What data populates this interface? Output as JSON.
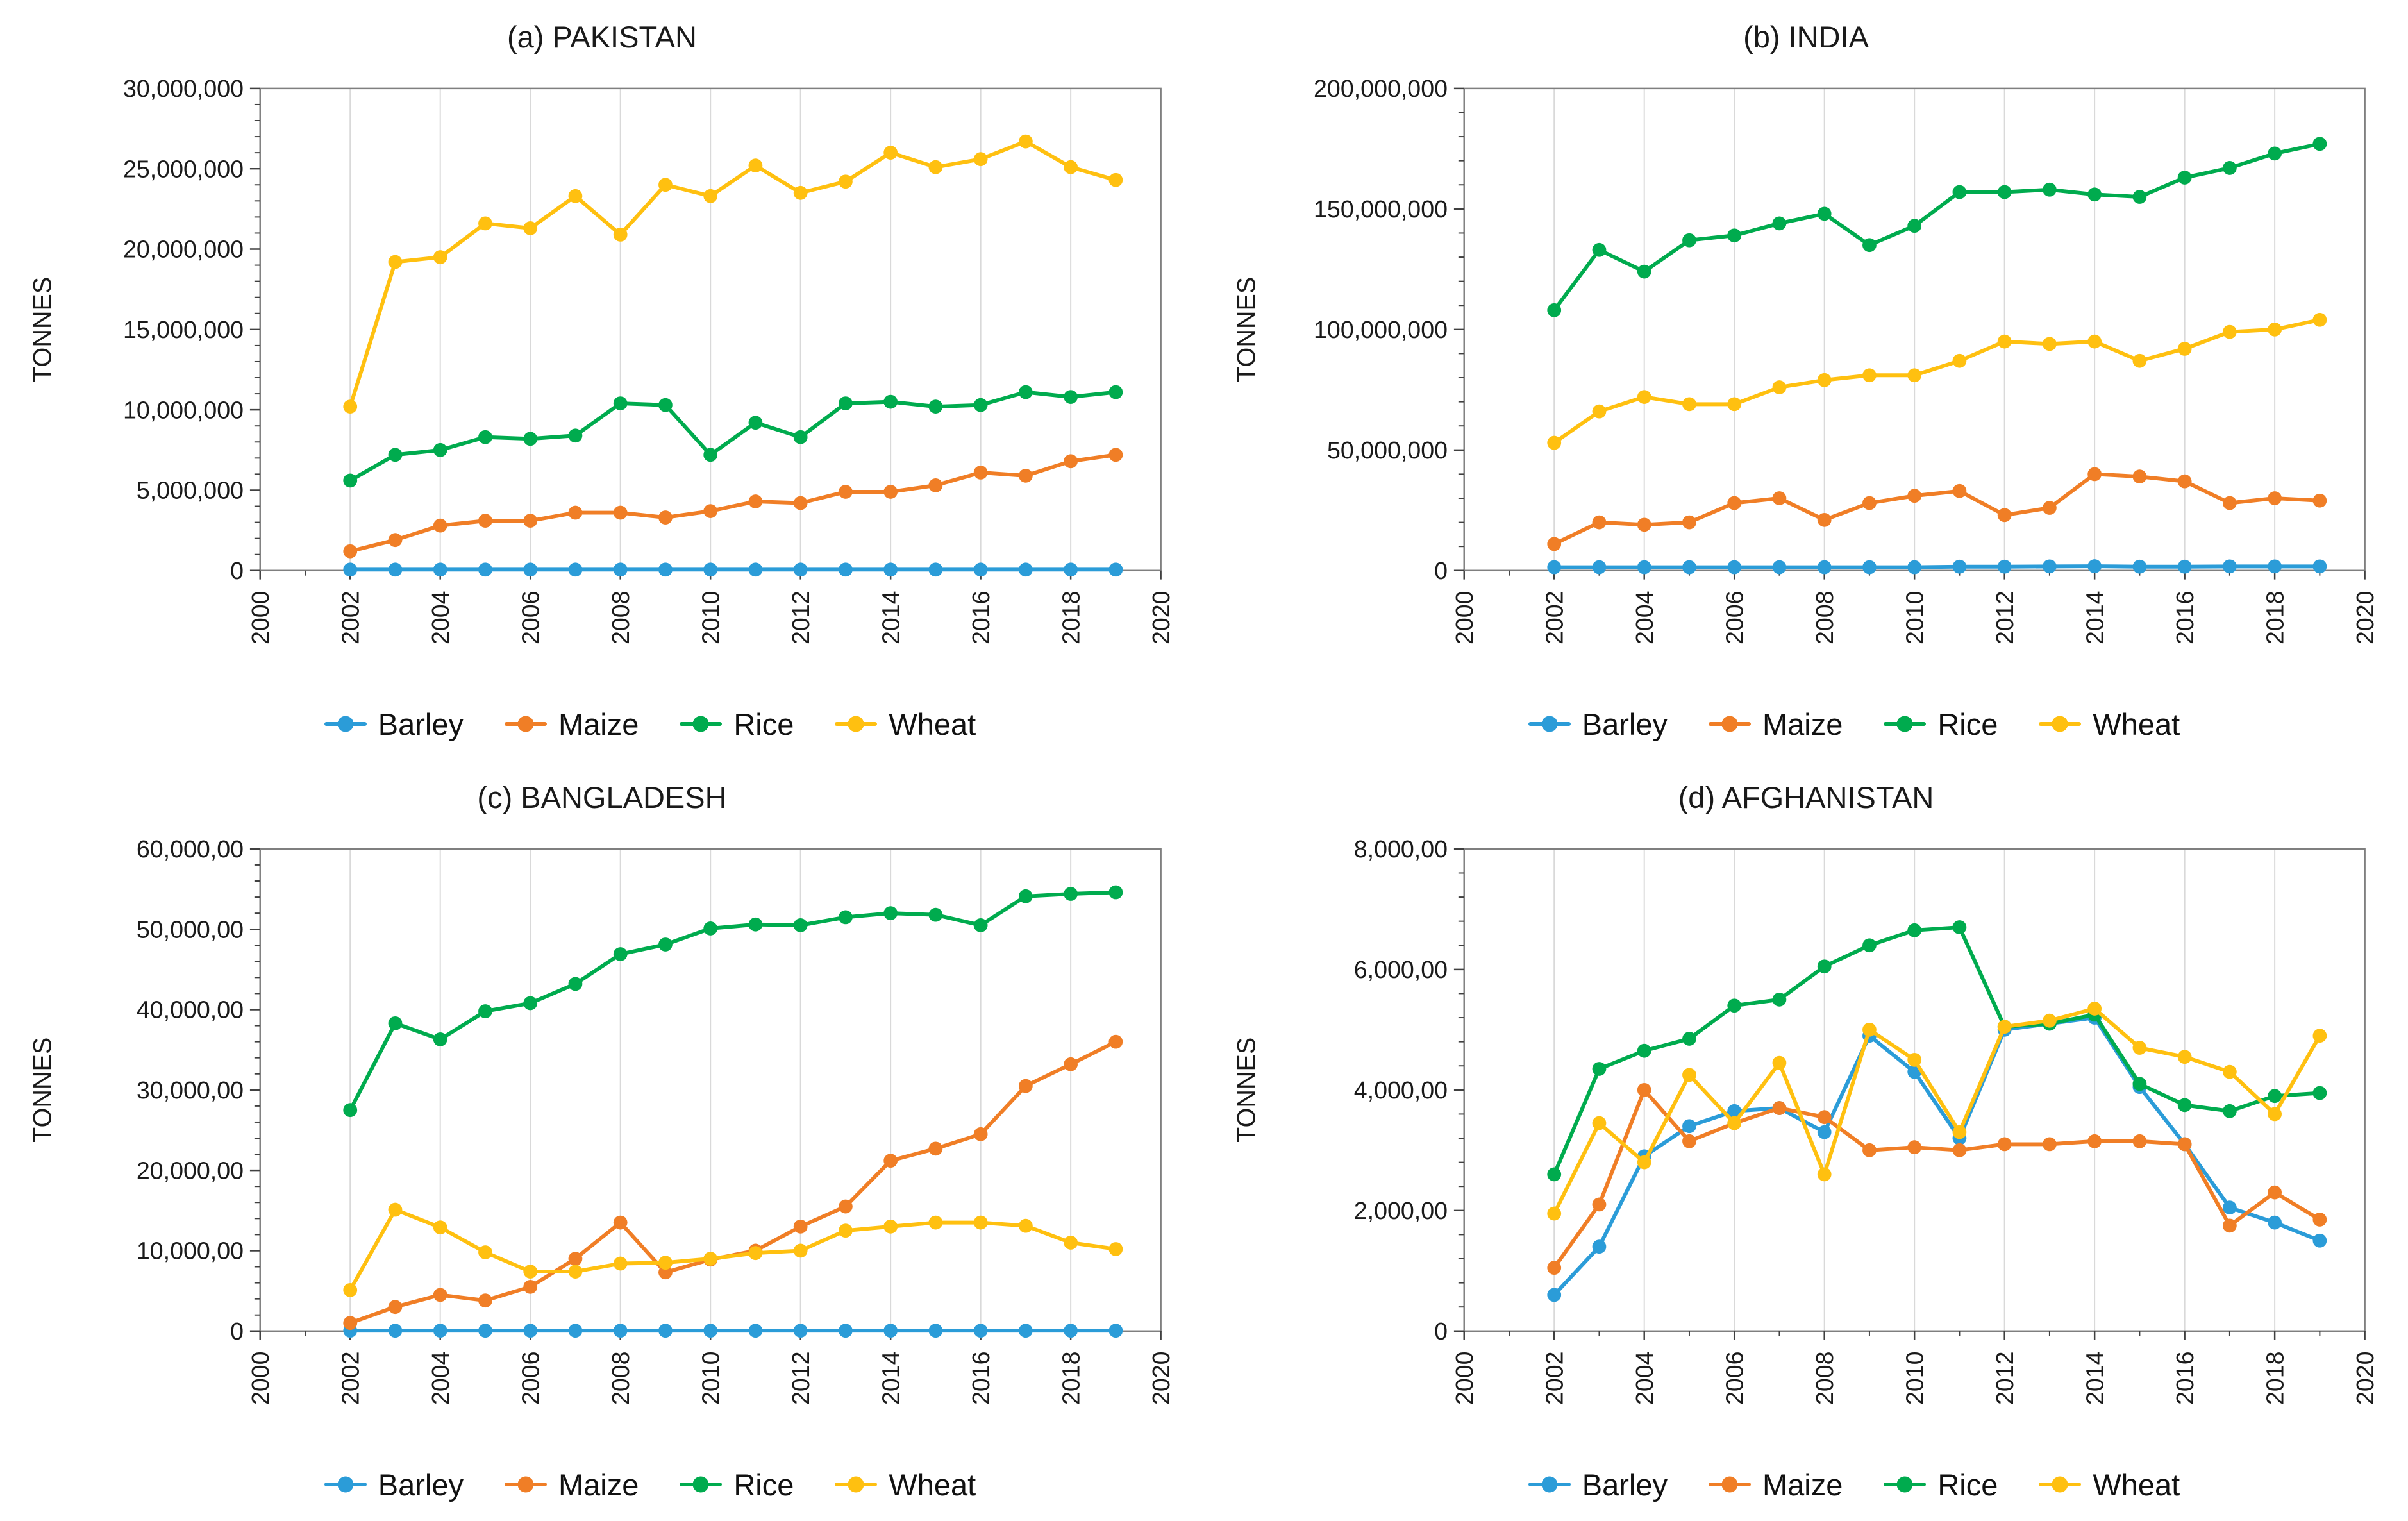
{
  "style": {
    "background": "#FFFFFF",
    "grid_color": "#D9D9D9",
    "border_color": "#7F7F7F",
    "axis_color": "#404040",
    "text_color": "#1A1A1A"
  },
  "chart_data": [
    {
      "id": "pakistan",
      "type": "line",
      "title": "(a) PAKISTAN",
      "ylabel": "TONNES",
      "xlim": [
        2000,
        2020
      ],
      "ylim": [
        0,
        30000000
      ],
      "grid": "vertical-only",
      "legend_position": "bottom",
      "x_tick_labels": [
        "2000",
        "2002",
        "2004",
        "2006",
        "2008",
        "2010",
        "2012",
        "2014",
        "2016",
        "2018",
        "2020"
      ],
      "y_ticks": [
        {
          "v": 0,
          "label": "0"
        },
        {
          "v": 5000000,
          "label": "5,000,000"
        },
        {
          "v": 10000000,
          "label": "10,000,000"
        },
        {
          "v": 15000000,
          "label": "15,000,000"
        },
        {
          "v": 20000000,
          "label": "20,000,000"
        },
        {
          "v": 25000000,
          "label": "25,000,000"
        },
        {
          "v": 30000000,
          "label": "30,000,000"
        }
      ],
      "x": [
        2002,
        2003,
        2004,
        2005,
        2006,
        2007,
        2008,
        2009,
        2010,
        2011,
        2012,
        2013,
        2014,
        2015,
        2016,
        2017,
        2018,
        2019
      ],
      "series": [
        {
          "name": "Barley",
          "color": "#2B9CD8",
          "values": [
            60000,
            60000,
            60000,
            60000,
            60000,
            60000,
            60000,
            60000,
            60000,
            60000,
            60000,
            60000,
            60000,
            60000,
            60000,
            60000,
            60000,
            60000
          ]
        },
        {
          "name": "Maize",
          "color": "#F07E26",
          "values": [
            1200000,
            1900000,
            2800000,
            3100000,
            3100000,
            3600000,
            3600000,
            3300000,
            3700000,
            4300000,
            4200000,
            4900000,
            4900000,
            5300000,
            6100000,
            5900000,
            6800000,
            7200000
          ]
        },
        {
          "name": "Rice",
          "color": "#00AB4E",
          "values": [
            5600000,
            7200000,
            7500000,
            8300000,
            8200000,
            8400000,
            10400000,
            10300000,
            7200000,
            9200000,
            8300000,
            10400000,
            10500000,
            10200000,
            10300000,
            11100000,
            10800000,
            11100000
          ]
        },
        {
          "name": "Wheat",
          "color": "#FFC010",
          "values": [
            10200000,
            19200000,
            19500000,
            21600000,
            21300000,
            23300000,
            20900000,
            24000000,
            23300000,
            25200000,
            23500000,
            24200000,
            26000000,
            25100000,
            25600000,
            26700000,
            25100000,
            24300000
          ]
        }
      ]
    },
    {
      "id": "india",
      "type": "line",
      "title": "(b) INDIA",
      "ylabel": "TONNES",
      "xlim": [
        2000,
        2020
      ],
      "ylim": [
        0,
        200000000
      ],
      "grid": "vertical-only",
      "legend_position": "bottom",
      "x_tick_labels": [
        "2000",
        "2002",
        "2004",
        "2006",
        "2008",
        "2010",
        "2012",
        "2014",
        "2016",
        "2018",
        "2020"
      ],
      "y_ticks": [
        {
          "v": 0,
          "label": "0"
        },
        {
          "v": 50000000,
          "label": "50,000,000"
        },
        {
          "v": 100000000,
          "label": "100,000,000"
        },
        {
          "v": 150000000,
          "label": "150,000,000"
        },
        {
          "v": 200000000,
          "label": "200,000,000"
        }
      ],
      "x": [
        2002,
        2003,
        2004,
        2005,
        2006,
        2007,
        2008,
        2009,
        2010,
        2011,
        2012,
        2013,
        2014,
        2015,
        2016,
        2017,
        2018,
        2019
      ],
      "series": [
        {
          "name": "Barley",
          "color": "#2B9CD8",
          "values": [
            1400000,
            1400000,
            1400000,
            1400000,
            1400000,
            1400000,
            1400000,
            1400000,
            1400000,
            1600000,
            1600000,
            1700000,
            1800000,
            1600000,
            1600000,
            1700000,
            1700000,
            1700000
          ]
        },
        {
          "name": "Maize",
          "color": "#F07E26",
          "values": [
            11000000,
            20000000,
            19000000,
            20000000,
            28000000,
            30000000,
            21000000,
            28000000,
            31000000,
            33000000,
            23000000,
            26000000,
            40000000,
            39000000,
            37000000,
            28000000,
            30000000,
            29000000
          ]
        },
        {
          "name": "Rice",
          "color": "#00AB4E",
          "values": [
            108000000,
            133000000,
            124000000,
            137000000,
            139000000,
            144000000,
            148000000,
            135000000,
            143000000,
            157000000,
            157000000,
            158000000,
            156000000,
            155000000,
            163000000,
            167000000,
            173000000,
            177000000
          ]
        },
        {
          "name": "Wheat",
          "color": "#FFC010",
          "values": [
            53000000,
            66000000,
            72000000,
            69000000,
            69000000,
            76000000,
            79000000,
            81000000,
            81000000,
            87000000,
            95000000,
            94000000,
            95000000,
            87000000,
            92000000,
            99000000,
            100000000,
            104000000
          ]
        }
      ]
    },
    {
      "id": "bangladesh",
      "type": "line",
      "title": "(c) BANGLADESH",
      "ylabel": "TONNES",
      "xlim": [
        2000,
        2020
      ],
      "ylim": [
        0,
        6000000
      ],
      "grid": "vertical-only",
      "legend_position": "bottom",
      "x_tick_labels": [
        "2000",
        "2002",
        "2004",
        "2006",
        "2008",
        "2010",
        "2012",
        "2014",
        "2016",
        "2018",
        "2020"
      ],
      "y_ticks": [
        {
          "v": 0,
          "label": "0"
        },
        {
          "v": 1000000,
          "label": "10,000,00"
        },
        {
          "v": 2000000,
          "label": "20,000,00"
        },
        {
          "v": 3000000,
          "label": "30,000,00"
        },
        {
          "v": 4000000,
          "label": "40,000,00"
        },
        {
          "v": 5000000,
          "label": "50,000,00"
        },
        {
          "v": 6000000,
          "label": "60,000,00"
        }
      ],
      "x": [
        2002,
        2003,
        2004,
        2005,
        2006,
        2007,
        2008,
        2009,
        2010,
        2011,
        2012,
        2013,
        2014,
        2015,
        2016,
        2017,
        2018,
        2019
      ],
      "series": [
        {
          "name": "Barley",
          "color": "#2B9CD8",
          "values": [
            5000,
            5000,
            5000,
            5000,
            5000,
            5000,
            5000,
            5000,
            5000,
            5000,
            5000,
            5000,
            5000,
            5000,
            5000,
            5000,
            5000,
            5000
          ]
        },
        {
          "name": "Maize",
          "color": "#F07E26",
          "values": [
            100000,
            300000,
            450000,
            380000,
            550000,
            900000,
            1350000,
            730000,
            890000,
            1000000,
            1300000,
            1550000,
            2120000,
            2270000,
            2450000,
            3050000,
            3320000,
            3600000
          ]
        },
        {
          "name": "Rice",
          "color": "#00AB4E",
          "values": [
            2750000,
            3830000,
            3630000,
            3980000,
            4080000,
            4320000,
            4690000,
            4810000,
            5010000,
            5060000,
            5050000,
            5150000,
            5200000,
            5180000,
            5050000,
            5410000,
            5440000,
            5460000
          ]
        },
        {
          "name": "Wheat",
          "color": "#FFC010",
          "values": [
            510000,
            1510000,
            1290000,
            980000,
            740000,
            740000,
            840000,
            850000,
            900000,
            970000,
            1000000,
            1250000,
            1300000,
            1350000,
            1350000,
            1310000,
            1100000,
            1020000
          ]
        }
      ]
    },
    {
      "id": "afghanistan",
      "type": "line",
      "title": "(d) AFGHANISTAN",
      "ylabel": "TONNES",
      "xlim": [
        2000,
        2020
      ],
      "ylim": [
        0,
        800000
      ],
      "grid": "vertical-only",
      "legend_position": "bottom",
      "x_tick_labels": [
        "2000",
        "2002",
        "2004",
        "2006",
        "2008",
        "2010",
        "2012",
        "2014",
        "2016",
        "2018",
        "2020"
      ],
      "y_ticks": [
        {
          "v": 0,
          "label": "0"
        },
        {
          "v": 200000,
          "label": "2,000,00"
        },
        {
          "v": 400000,
          "label": "4,000,00"
        },
        {
          "v": 600000,
          "label": "6,000,00"
        },
        {
          "v": 800000,
          "label": "8,000,00"
        }
      ],
      "x": [
        2002,
        2003,
        2004,
        2005,
        2006,
        2007,
        2008,
        2009,
        2010,
        2011,
        2012,
        2013,
        2014,
        2015,
        2016,
        2017,
        2018,
        2019
      ],
      "series": [
        {
          "name": "Barley",
          "color": "#2B9CD8",
          "values": [
            60000,
            140000,
            290000,
            340000,
            365000,
            370000,
            330000,
            490000,
            430000,
            320000,
            500000,
            510000,
            520000,
            405000,
            310000,
            205000,
            180000,
            150000
          ]
        },
        {
          "name": "Maize",
          "color": "#F07E26",
          "values": [
            105000,
            210000,
            400000,
            315000,
            345000,
            370000,
            355000,
            300000,
            305000,
            300000,
            310000,
            310000,
            315000,
            315000,
            310000,
            175000,
            230000,
            185000
          ]
        },
        {
          "name": "Rice",
          "color": "#00AB4E",
          "values": [
            260000,
            435000,
            465000,
            485000,
            540000,
            550000,
            605000,
            640000,
            665000,
            670000,
            505000,
            510000,
            525000,
            410000,
            375000,
            365000,
            390000,
            395000
          ]
        },
        {
          "name": "Wheat",
          "color": "#FFC010",
          "values": [
            195000,
            345000,
            280000,
            425000,
            345000,
            445000,
            260000,
            500000,
            450000,
            330000,
            505000,
            515000,
            535000,
            470000,
            455000,
            430000,
            360000,
            490000
          ]
        }
      ]
    }
  ]
}
